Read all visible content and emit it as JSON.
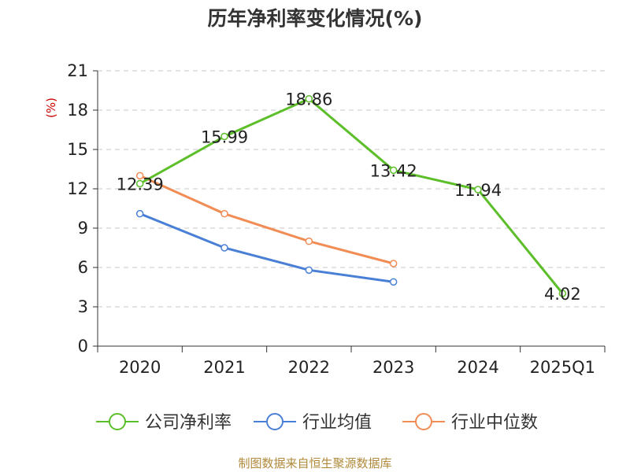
{
  "chart_data": {
    "type": "line",
    "title": "历年净利率变化情况(%)",
    "ylabel": "(%)",
    "categories": [
      "2020",
      "2021",
      "2022",
      "2023",
      "2024",
      "2025Q1"
    ],
    "ylim": [
      0,
      21
    ],
    "yticks": [
      0,
      3,
      6,
      9,
      12,
      15,
      18,
      21
    ],
    "grid": true,
    "legend_position": "bottom",
    "series": [
      {
        "name": "公司净利率",
        "color": "#5cbf2a",
        "values": [
          12.39,
          15.99,
          18.86,
          13.42,
          11.94,
          4.02
        ],
        "show_labels": true
      },
      {
        "name": "行业均值",
        "color": "#4a7fd6",
        "values": [
          10.1,
          7.5,
          5.8,
          4.9,
          null,
          null
        ],
        "show_labels": false
      },
      {
        "name": "行业中位数",
        "color": "#f28c55",
        "values": [
          13.0,
          10.1,
          8.0,
          6.3,
          null,
          null
        ],
        "show_labels": false
      }
    ]
  },
  "source": "制图数据来自恒生聚源数据库"
}
